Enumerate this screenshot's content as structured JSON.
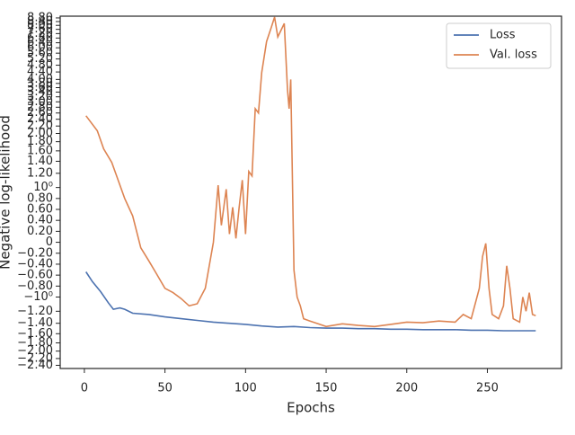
{
  "chart_data": {
    "type": "line",
    "xlabel": "Epochs",
    "ylabel": "Negative log-likelihood",
    "yscale": "symlog",
    "linthresh": 1,
    "xlim": [
      -15,
      296
    ],
    "xticks": [
      0,
      50,
      100,
      150,
      200,
      250
    ],
    "ylim": [
      -2.5,
      9
    ],
    "yticks": [
      {
        "value": -2.4,
        "label": "−2.40"
      },
      {
        "value": -2.2,
        "label": "−2.20"
      },
      {
        "value": -2.0,
        "label": "−2.00"
      },
      {
        "value": -1.8,
        "label": "−1.80"
      },
      {
        "value": -1.6,
        "label": "−1.60"
      },
      {
        "value": -1.4,
        "label": "−1.40"
      },
      {
        "value": -1.2,
        "label": "−1.20"
      },
      {
        "value": -1,
        "label": "−10⁰"
      },
      {
        "value": -0.8,
        "label": "−0.80"
      },
      {
        "value": -0.6,
        "label": "−0.60"
      },
      {
        "value": -0.4,
        "label": "−0.40"
      },
      {
        "value": -0.2,
        "label": "−0.20"
      },
      0,
      {
        "value": 0.2,
        "label": "0.20"
      },
      {
        "value": 0.4,
        "label": "0.40"
      },
      {
        "value": 0.6,
        "label": "0.60"
      },
      {
        "value": 0.8,
        "label": "0.80"
      },
      {
        "value": 1,
        "label": "10⁰"
      },
      {
        "value": 1.2,
        "label": "1.20"
      },
      {
        "value": 1.4,
        "label": "1.40"
      },
      {
        "value": 1.6,
        "label": "1.60"
      },
      {
        "value": 1.8,
        "label": "1.80"
      },
      {
        "value": 2.0,
        "label": "2.00"
      },
      {
        "value": 2.2,
        "label": "2.20"
      },
      {
        "value": 2.4,
        "label": "2.40"
      },
      {
        "value": 2.6,
        "label": "2.60"
      },
      {
        "value": 2.8,
        "label": "2.80"
      },
      {
        "value": 3.0,
        "label": "3.00"
      },
      {
        "value": 3.2,
        "label": "3.20"
      },
      {
        "value": 3.4,
        "label": "3.40"
      },
      {
        "value": 3.6,
        "label": "3.60"
      },
      {
        "value": 3.8,
        "label": "3.80"
      },
      {
        "value": 4.0,
        "label": "4.00"
      },
      {
        "value": 4.4,
        "label": "4.40"
      },
      {
        "value": 4.8,
        "label": "4.80"
      },
      {
        "value": 5.2,
        "label": "5.20"
      },
      {
        "value": 5.6,
        "label": "5.60"
      },
      {
        "value": 6.0,
        "label": "6.00"
      },
      {
        "value": 6.4,
        "label": "6.40"
      },
      {
        "value": 6.8,
        "label": "6.80"
      },
      {
        "value": 7.2,
        "label": "7.20"
      },
      {
        "value": 7.6,
        "label": "7.60"
      },
      {
        "value": 8.0,
        "label": "8.00"
      },
      {
        "value": 8.4,
        "label": "8.40"
      },
      {
        "value": 8.8,
        "label": "8.80"
      }
    ],
    "legend": "upper right",
    "series": [
      {
        "name": "Loss",
        "color": "#4c72b0",
        "x": [
          1,
          5,
          10,
          15,
          18,
          22,
          25,
          30,
          40,
          50,
          60,
          70,
          80,
          90,
          100,
          110,
          120,
          130,
          140,
          150,
          160,
          170,
          180,
          190,
          200,
          210,
          220,
          230,
          240,
          250,
          260,
          270,
          280
        ],
        "values": [
          -0.54,
          -0.72,
          -0.9,
          -1.08,
          -1.17,
          -1.15,
          -1.17,
          -1.23,
          -1.25,
          -1.29,
          -1.32,
          -1.35,
          -1.38,
          -1.4,
          -1.42,
          -1.45,
          -1.47,
          -1.46,
          -1.48,
          -1.49,
          -1.49,
          -1.5,
          -1.5,
          -1.51,
          -1.51,
          -1.52,
          -1.52,
          -1.52,
          -1.53,
          -1.53,
          -1.54,
          -1.54,
          -1.54
        ]
      },
      {
        "name": "Val. loss",
        "color": "#dd8452",
        "x": [
          1,
          8,
          12,
          17,
          25,
          30,
          35,
          40,
          45,
          50,
          55,
          60,
          65,
          70,
          75,
          80,
          83,
          85,
          88,
          90,
          92,
          94,
          96,
          98,
          100,
          102,
          104,
          106,
          108,
          110,
          113,
          116,
          118,
          120,
          124,
          126,
          127,
          128,
          130,
          132,
          134,
          136,
          140,
          145,
          150,
          160,
          170,
          180,
          190,
          200,
          210,
          220,
          230,
          235,
          240,
          245,
          247,
          249,
          251,
          253,
          257,
          260,
          262,
          264,
          266,
          270,
          272,
          274,
          276,
          278,
          280
        ],
        "values": [
          2.51,
          2.07,
          1.64,
          1.38,
          0.8,
          0.48,
          -0.1,
          -0.34,
          -0.59,
          -0.84,
          -0.92,
          -1.02,
          -1.12,
          -1.09,
          -0.84,
          0,
          1.03,
          0.31,
          0.97,
          0.15,
          0.64,
          0.07,
          0.64,
          1.1,
          0.15,
          1.23,
          1.16,
          2.75,
          2.6,
          4.37,
          6.5,
          7.8,
          8.9,
          6.9,
          8.2,
          3.5,
          2.75,
          4.0,
          -0.51,
          -1.0,
          -1.12,
          -1.32,
          -1.36,
          -1.41,
          -1.46,
          -1.41,
          -1.44,
          -1.46,
          -1.42,
          -1.38,
          -1.39,
          -1.36,
          -1.38,
          -1.25,
          -1.32,
          -0.84,
          -0.26,
          -0.02,
          -0.84,
          -1.25,
          -1.32,
          -1.12,
          -0.43,
          -0.84,
          -1.32,
          -1.38,
          -1.0,
          -1.2,
          -0.92,
          -1.25,
          -1.27
        ]
      }
    ]
  }
}
